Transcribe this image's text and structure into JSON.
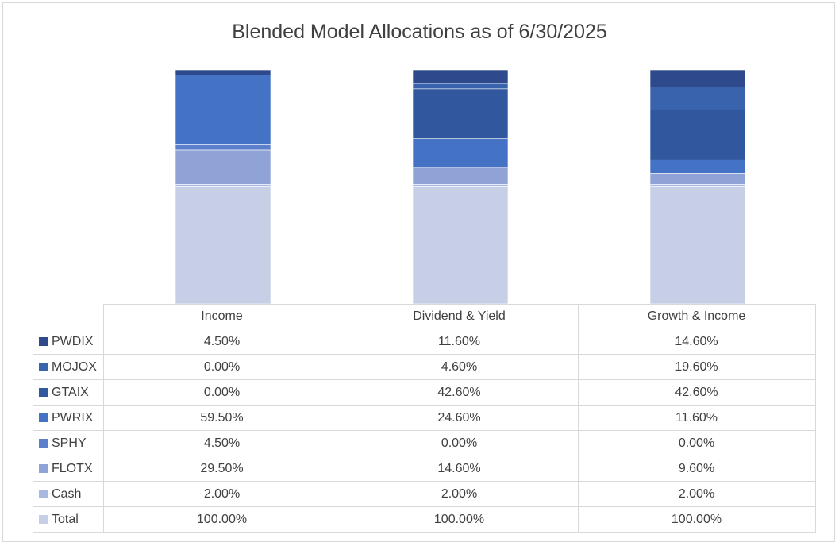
{
  "chart_data": {
    "type": "bar",
    "stacked": true,
    "title": "Blended Model Allocations as of 6/30/2025",
    "categories": [
      "Income",
      "Dividend & Yield",
      "Growth & Income"
    ],
    "series": [
      {
        "name": "PWDIX",
        "color": "#2f4a8c",
        "values": [
          "4.50%",
          "11.60%",
          "14.60%"
        ]
      },
      {
        "name": "MOJOX",
        "color": "#3a63ad",
        "values": [
          "0.00%",
          "4.60%",
          "19.60%"
        ]
      },
      {
        "name": "GTAIX",
        "color": "#31579e",
        "values": [
          "0.00%",
          "42.60%",
          "42.60%"
        ]
      },
      {
        "name": "PWRIX",
        "color": "#4472c4",
        "values": [
          "59.50%",
          "24.60%",
          "11.60%"
        ]
      },
      {
        "name": "SPHY",
        "color": "#5b7fcb",
        "values": [
          "4.50%",
          "0.00%",
          "0.00%"
        ]
      },
      {
        "name": "FLOTX",
        "color": "#8fa3d6",
        "values": [
          "29.50%",
          "14.60%",
          "9.60%"
        ]
      },
      {
        "name": "Cash",
        "color": "#a8b8e0",
        "values": [
          "2.00%",
          "2.00%",
          "2.00%"
        ]
      },
      {
        "name": "Total",
        "color": "#c7cfe6",
        "values": [
          "100.00%",
          "100.00%",
          "100.00%"
        ]
      }
    ]
  }
}
